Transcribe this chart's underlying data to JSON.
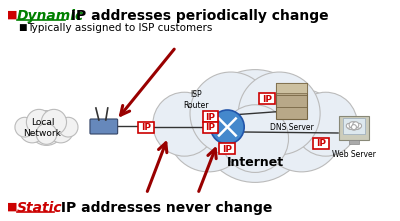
{
  "bg_color": "#ffffff",
  "title_dynamic": "Dynamic",
  "title_dynamic_color": "#008000",
  "title_rest1": " IP addresses periodically change",
  "subtitle": "Typically assigned to ISP customers",
  "title_static": "Static",
  "title_static_color": "#cc0000",
  "title_rest2": " IP addresses never change",
  "bullet_color": "#cc0000",
  "text_color": "#000000",
  "arrow_color": "#990000",
  "ip_box_border": "#cc0000",
  "ip_text_color": "#cc0000",
  "local_network_label": "Local\nNetwork",
  "isp_router_label": "ISP\nRouter",
  "dns_server_label": "DNS Server",
  "web_server_label": "Web Server",
  "internet_label": "Internet"
}
